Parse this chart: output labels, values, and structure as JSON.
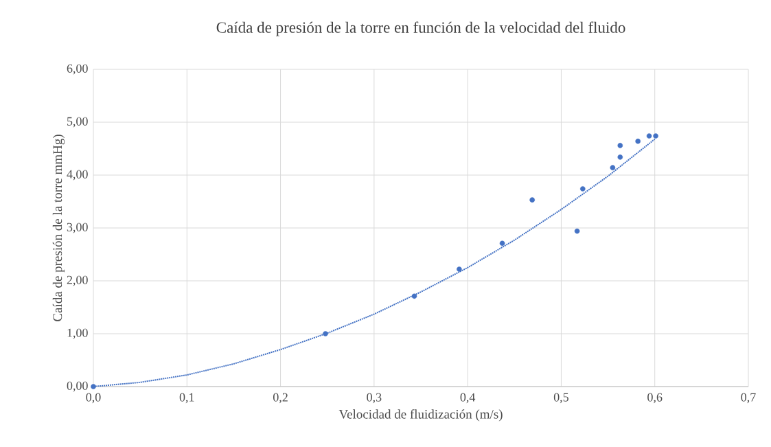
{
  "chart_data": {
    "type": "scatter",
    "title": "Caída de presión de la torre en función de la velocidad del fluido",
    "xlabel": "Velocidad de fluidización (m/s)",
    "ylabel": "Caída de presión de la torre mmHg)",
    "xlim": [
      0,
      0.7
    ],
    "ylim": [
      0,
      6
    ],
    "xticks": [
      {
        "value": 0,
        "label": "0,0"
      },
      {
        "value": 0.1,
        "label": "0,1"
      },
      {
        "value": 0.2,
        "label": "0,2"
      },
      {
        "value": 0.3,
        "label": "0,3"
      },
      {
        "value": 0.4,
        "label": "0,4"
      },
      {
        "value": 0.5,
        "label": "0,5"
      },
      {
        "value": 0.6,
        "label": "0,6"
      },
      {
        "value": 0.7,
        "label": "0,7"
      }
    ],
    "yticks": [
      {
        "value": 0,
        "label": "0,00"
      },
      {
        "value": 1,
        "label": "1,00"
      },
      {
        "value": 2,
        "label": "2,00"
      },
      {
        "value": 3,
        "label": "3,00"
      },
      {
        "value": 4,
        "label": "4,00"
      },
      {
        "value": 5,
        "label": "5,00"
      },
      {
        "value": 6,
        "label": "6,00"
      }
    ],
    "grid": true,
    "series": [
      {
        "color": "#4472c4",
        "marker": "circle",
        "x": [
          0,
          0.248,
          0.343,
          0.391,
          0.437,
          0.469,
          0.517,
          0.523,
          0.555,
          0.563,
          0.563,
          0.582,
          0.594,
          0.601
        ],
        "values": [
          0,
          1.0,
          1.71,
          2.22,
          2.71,
          3.53,
          2.94,
          3.74,
          4.14,
          4.34,
          4.56,
          4.64,
          4.74,
          4.74
        ]
      },
      {
        "type": "line",
        "color": "#4472c4",
        "line_style": "dotted",
        "x": [
          0,
          0.05,
          0.1,
          0.15,
          0.2,
          0.25,
          0.3,
          0.35,
          0.4,
          0.45,
          0.5,
          0.55,
          0.6
        ],
        "values": [
          0,
          0.08,
          0.22,
          0.43,
          0.7,
          1.01,
          1.37,
          1.79,
          2.25,
          2.77,
          3.35,
          3.98,
          4.68
        ]
      }
    ]
  }
}
